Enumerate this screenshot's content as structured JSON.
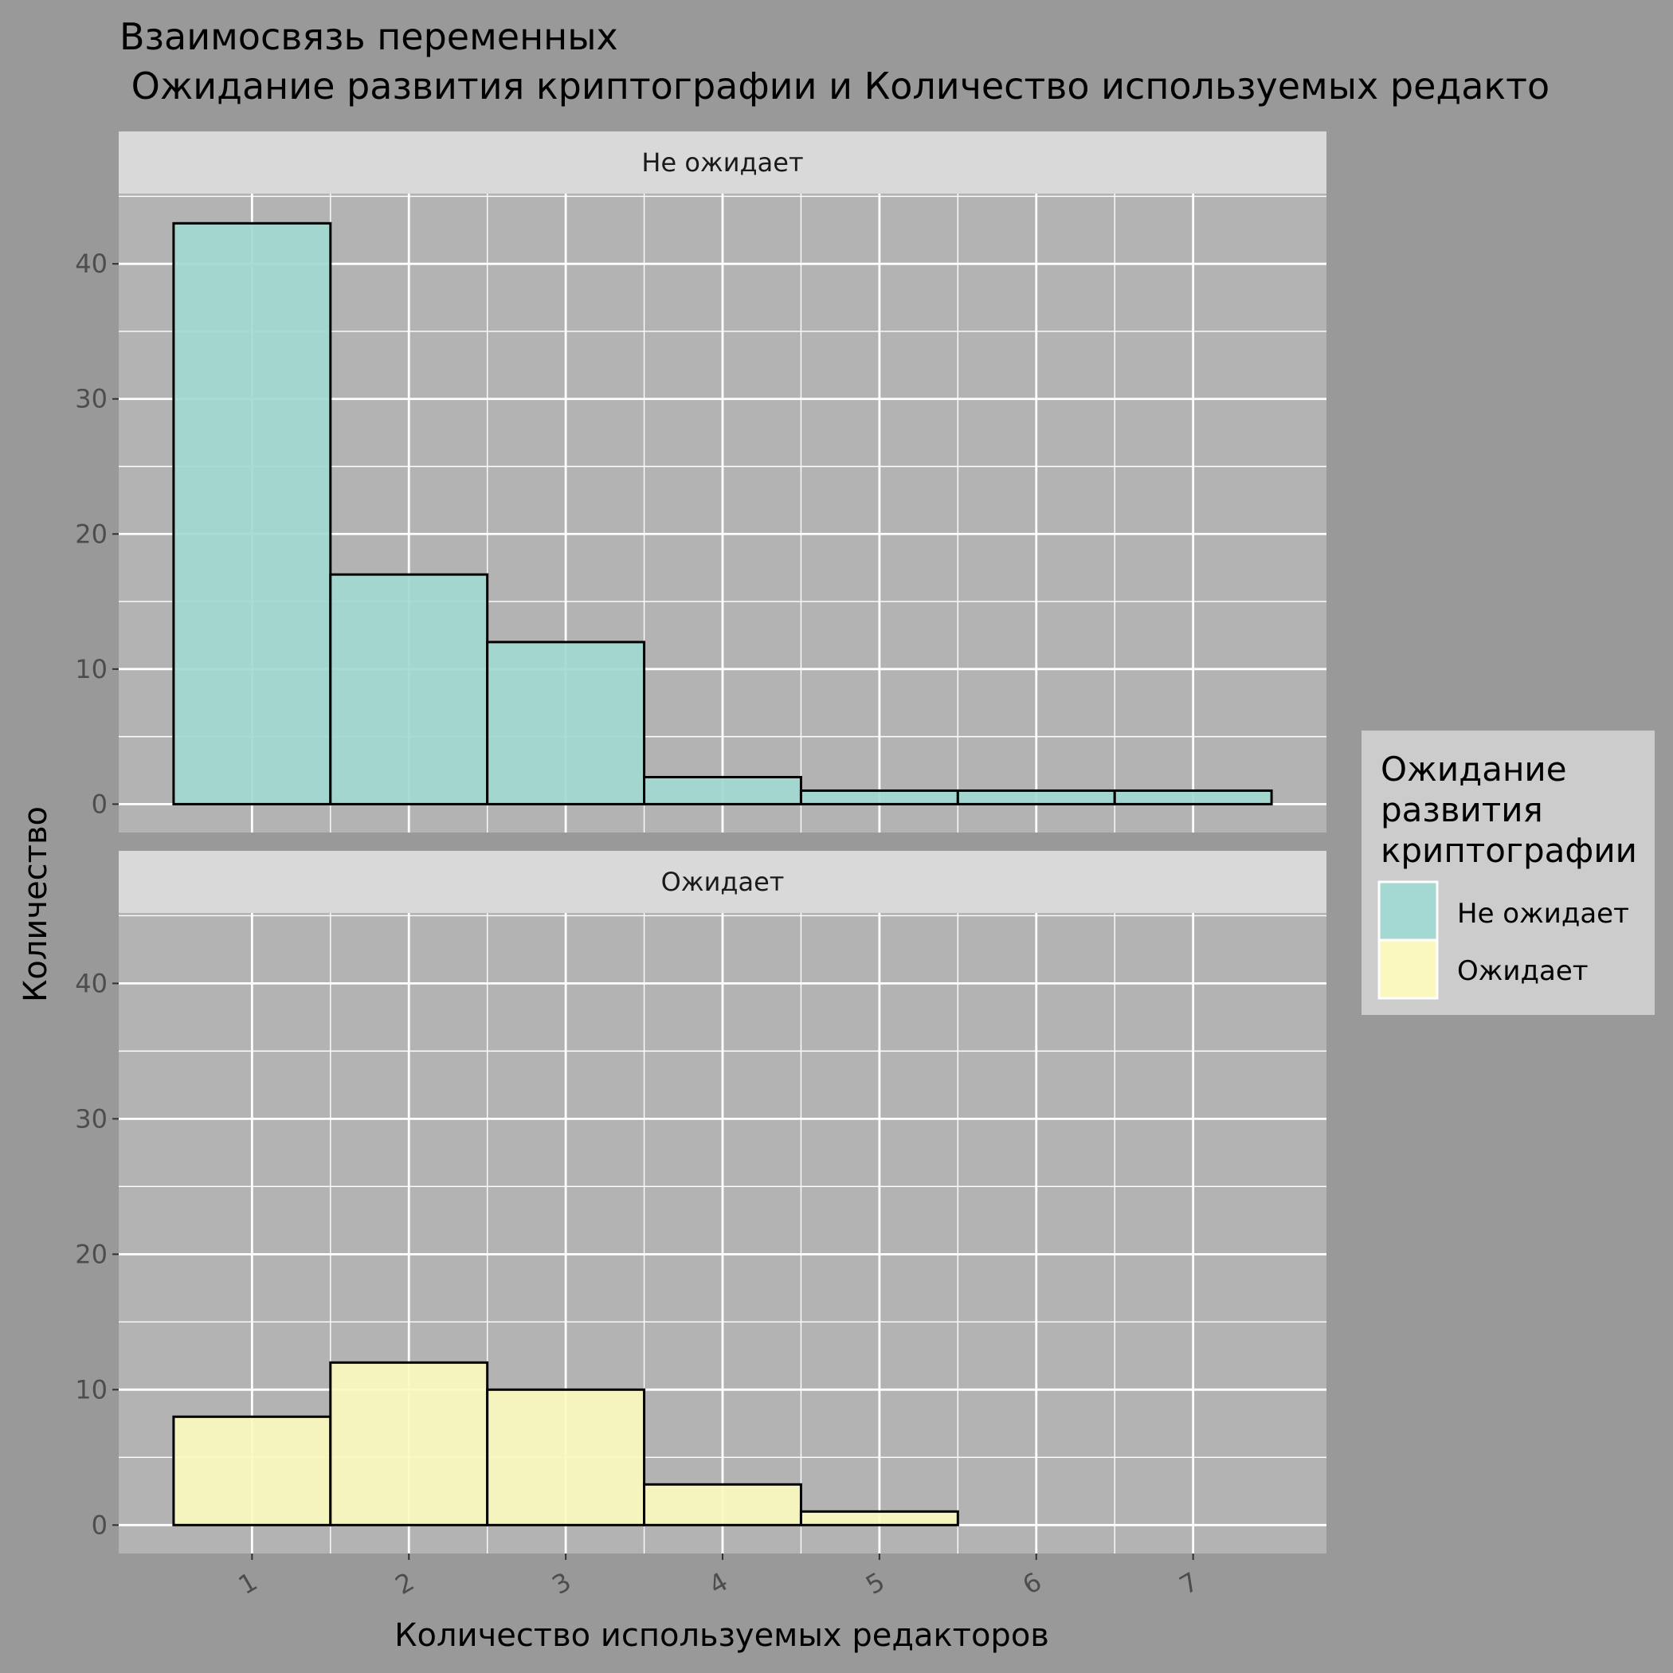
{
  "chart_data": {
    "type": "bar",
    "title_lines": [
      "Взаимосвязь переменных",
      " Ожидание развития криптографии и Количество используемых редакто"
    ],
    "xlabel": "Количество используемых редакторов",
    "ylabel": "Количество",
    "categories": [
      "1",
      "2",
      "3",
      "4",
      "5",
      "6",
      "7"
    ],
    "x": [
      1,
      2,
      3,
      4,
      5,
      6,
      7
    ],
    "xlim": [
      0.15,
      7.85
    ],
    "ylim": [
      -2.1,
      45.2
    ],
    "yticks": [
      0,
      10,
      20,
      30,
      40
    ],
    "grid": true,
    "legend": {
      "title_lines": [
        "Ожидание",
        "развития",
        "криптографии"
      ],
      "position": "right"
    },
    "panels": [
      {
        "strip": "Не ожидает",
        "series": {
          "name": "Не ожидает",
          "color": "#A3D9D2",
          "values": [
            43,
            17,
            12,
            2,
            1,
            1,
            1
          ]
        }
      },
      {
        "strip": "Ожидает",
        "series": {
          "name": "Ожидает",
          "color": "#FBF8BF",
          "values": [
            8,
            12,
            10,
            3,
            1,
            0,
            0
          ]
        }
      }
    ]
  },
  "colors": {
    "page_background": "#999999",
    "panel_background": "#B3B3B3",
    "strip_background": "#D9D9D9",
    "legend_background": "#CCCCCC",
    "grid": "#FFFFFF",
    "bar_outline": "#000000"
  }
}
